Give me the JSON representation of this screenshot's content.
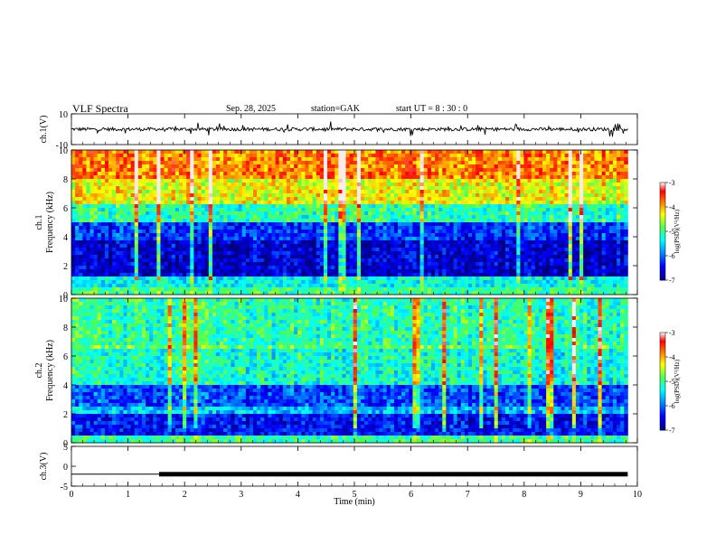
{
  "header": {
    "title": "VLF  Spectra",
    "date": "Sep. 28, 2025",
    "station": "station=GAK",
    "start": "start  UT =   8  : 30 : 0"
  },
  "chart_data": [
    {
      "type": "line",
      "name": "ch1-waveform",
      "ylabel": "ch.1(V)",
      "ylim": [
        -10,
        10
      ],
      "yticks": [
        "10",
        "-10"
      ],
      "baseline_value": 0,
      "xlim": [
        0,
        9.83
      ]
    },
    {
      "type": "heatmap",
      "name": "ch1-spectrogram",
      "ylabel": "ch.1\nFrequency (kHz)",
      "ylabel_line1": "ch.1",
      "ylabel_line2": "Frequency  (kHz)",
      "ylim": [
        0,
        10
      ],
      "yticks": [
        "0",
        "2",
        "4",
        "6",
        "8",
        "10"
      ],
      "xlim": [
        0,
        9.83
      ],
      "colorbar": {
        "label": "log(PSD)(V²/Hz)",
        "range": [
          -7,
          -3
        ],
        "ticks": [
          "-3",
          "-4",
          "-5",
          "-6",
          "-7"
        ]
      }
    },
    {
      "type": "heatmap",
      "name": "ch2-spectrogram",
      "ylabel_line1": "ch.2",
      "ylabel_line2": "Frequency  (kHz)",
      "ylim": [
        0,
        10
      ],
      "yticks": [
        "0",
        "2",
        "4",
        "6",
        "8",
        "10"
      ],
      "xlim": [
        0,
        9.83
      ],
      "colorbar": {
        "label": "log(PSD)(V²/Hz)",
        "range": [
          -7,
          -3
        ],
        "ticks": [
          "-3",
          "-4",
          "-5",
          "-6",
          "-7"
        ]
      }
    },
    {
      "type": "line",
      "name": "ch3-signal",
      "ylabel": "ch.3(V)",
      "ylim": [
        -5,
        5
      ],
      "yticks": [
        "5",
        "0",
        "-5"
      ],
      "x": [
        0,
        1.55,
        1.55,
        9.83
      ],
      "y": [
        -2,
        -2,
        -2,
        -2
      ],
      "pulsed_from_min": 1.55
    }
  ],
  "x_axis": {
    "label": "Time  (min)",
    "ticks": [
      "0",
      "1",
      "2",
      "3",
      "4",
      "5",
      "6",
      "7",
      "8",
      "9",
      "10"
    ],
    "range": [
      0,
      10
    ]
  },
  "colors": {
    "colormap": [
      "#000080",
      "#0000ff",
      "#00a0ff",
      "#00ffff",
      "#60ff60",
      "#ffff00",
      "#ff8000",
      "#ff0000",
      "#ffffff"
    ]
  }
}
